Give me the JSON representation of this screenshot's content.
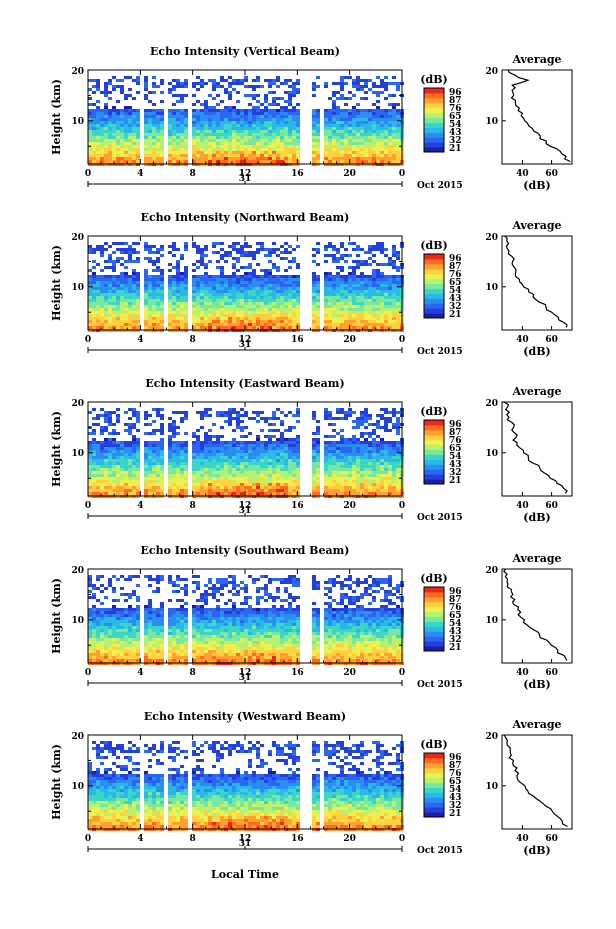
{
  "figure": {
    "xlabel": "Local Time",
    "date_label": "Oct 2015",
    "day_label": "31",
    "colorbar_unit": "(dB)",
    "colorbar_ticks": [
      "96",
      "87",
      "76",
      "65",
      "54",
      "43",
      "32",
      "21"
    ],
    "colors": [
      "#1b1ea8",
      "#2340dc",
      "#2a66f0",
      "#2a8ef0",
      "#2ab8e8",
      "#3cd6c8",
      "#78e8a0",
      "#b8f070",
      "#eef050",
      "#ffd040",
      "#ffa030",
      "#ff6a20",
      "#e8281a"
    ]
  },
  "chart_data": [
    {
      "type": "heatmap",
      "title": "Echo Intensity (Vertical Beam)",
      "xlabel": "",
      "ylabel": "Height (km)",
      "xlim": [
        0,
        24
      ],
      "ylim": [
        1.5,
        20
      ],
      "xticks": [
        "0",
        "4",
        "8",
        "12",
        "16",
        "20",
        "0"
      ],
      "yticks": [
        "10",
        "20"
      ],
      "gaps_hours": [
        [
          3.7,
          4.1
        ],
        [
          5.7,
          6.1
        ],
        [
          7.4,
          7.7
        ],
        [
          16.1,
          17.1
        ],
        [
          17.6,
          17.9
        ]
      ],
      "colorbar_range_db": [
        21,
        96
      ]
    },
    {
      "type": "line",
      "title": "Average",
      "xlabel": "(dB)",
      "ylabel": "",
      "ylim": [
        1.5,
        20
      ],
      "xticks": [
        "40",
        "60"
      ],
      "yticks": [
        "10",
        "20"
      ],
      "height_km": [
        2,
        3,
        4,
        5,
        6,
        7,
        8,
        9,
        10,
        11,
        12,
        13,
        14,
        15,
        16,
        17,
        18,
        19,
        20
      ],
      "db": [
        72,
        70,
        66,
        60,
        56,
        52,
        48,
        45,
        42,
        40,
        38,
        36,
        35,
        34,
        33,
        34,
        44,
        34,
        30
      ]
    },
    {
      "type": "heatmap",
      "title": "Echo Intensity (Northward Beam)",
      "xlabel": "",
      "ylabel": "Height (km)",
      "xlim": [
        0,
        24
      ],
      "ylim": [
        1.5,
        20
      ],
      "xticks": [
        "0",
        "4",
        "8",
        "12",
        "16",
        "20",
        "0"
      ],
      "yticks": [
        "10",
        "20"
      ],
      "gaps_hours": [
        [
          3.7,
          4.1
        ],
        [
          5.7,
          6.1
        ],
        [
          7.4,
          7.7
        ],
        [
          16.1,
          17.1
        ],
        [
          17.6,
          17.9
        ]
      ],
      "colorbar_range_db": [
        21,
        96
      ]
    },
    {
      "type": "line",
      "title": "Average",
      "xlabel": "(dB)",
      "ylabel": "",
      "ylim": [
        1.5,
        20
      ],
      "xticks": [
        "40",
        "60"
      ],
      "yticks": [
        "10",
        "20"
      ],
      "height_km": [
        2,
        3,
        4,
        5,
        6,
        7,
        8,
        9,
        10,
        11,
        12,
        13,
        14,
        15,
        16,
        17,
        18,
        19,
        20
      ],
      "db": [
        70,
        68,
        64,
        60,
        56,
        52,
        48,
        44,
        41,
        38,
        36,
        35,
        34,
        33,
        32,
        31,
        30,
        29,
        28
      ]
    },
    {
      "type": "heatmap",
      "title": "Echo Intensity (Eastward Beam)",
      "xlabel": "",
      "ylabel": "Height (km)",
      "xlim": [
        0,
        24
      ],
      "ylim": [
        1.5,
        20
      ],
      "xticks": [
        "0",
        "4",
        "8",
        "12",
        "16",
        "20",
        "0"
      ],
      "yticks": [
        "10",
        "20"
      ],
      "gaps_hours": [
        [
          3.7,
          4.1
        ],
        [
          5.7,
          6.1
        ],
        [
          7.4,
          7.7
        ],
        [
          16.1,
          17.1
        ],
        [
          17.6,
          17.9
        ]
      ],
      "colorbar_range_db": [
        21,
        96
      ]
    },
    {
      "type": "line",
      "title": "Average",
      "xlabel": "(dB)",
      "ylabel": "",
      "ylim": [
        1.5,
        20
      ],
      "xticks": [
        "40",
        "60"
      ],
      "yticks": [
        "10",
        "20"
      ],
      "height_km": [
        2,
        3,
        4,
        5,
        6,
        7,
        8,
        9,
        10,
        11,
        12,
        13,
        14,
        15,
        16,
        17,
        18,
        19,
        20
      ],
      "db": [
        70,
        68,
        64,
        60,
        56,
        52,
        48,
        44,
        41,
        38,
        36,
        35,
        34,
        33,
        32,
        31,
        30,
        29,
        28
      ]
    },
    {
      "type": "heatmap",
      "title": "Echo Intensity (Southward Beam)",
      "xlabel": "",
      "ylabel": "Height (km)",
      "xlim": [
        0,
        24
      ],
      "ylim": [
        1.5,
        20
      ],
      "xticks": [
        "0",
        "4",
        "8",
        "12",
        "16",
        "20",
        "0"
      ],
      "yticks": [
        "10",
        "20"
      ],
      "gaps_hours": [
        [
          3.7,
          4.1
        ],
        [
          5.7,
          6.1
        ],
        [
          7.4,
          7.7
        ],
        [
          16.1,
          17.1
        ],
        [
          17.6,
          17.9
        ]
      ],
      "colorbar_range_db": [
        21,
        96
      ]
    },
    {
      "type": "line",
      "title": "Average",
      "xlabel": "(dB)",
      "ylabel": "",
      "ylim": [
        1.5,
        20
      ],
      "xticks": [
        "40",
        "60"
      ],
      "yticks": [
        "10",
        "20"
      ],
      "height_km": [
        2,
        3,
        4,
        5,
        6,
        7,
        8,
        9,
        10,
        11,
        12,
        13,
        14,
        15,
        16,
        17,
        18,
        19,
        20
      ],
      "db": [
        70,
        68,
        64,
        60,
        56,
        52,
        48,
        44,
        41,
        38,
        36,
        35,
        34,
        33,
        32,
        31,
        30,
        29,
        28
      ]
    },
    {
      "type": "heatmap",
      "title": "Echo Intensity (Westward Beam)",
      "xlabel": "Local Time",
      "ylabel": "Height (km)",
      "xlim": [
        0,
        24
      ],
      "ylim": [
        1.5,
        20
      ],
      "xticks": [
        "0",
        "4",
        "8",
        "12",
        "16",
        "20",
        "0"
      ],
      "yticks": [
        "10",
        "20"
      ],
      "gaps_hours": [
        [
          3.7,
          4.1
        ],
        [
          5.7,
          6.1
        ],
        [
          7.4,
          7.7
        ],
        [
          16.1,
          17.1
        ],
        [
          17.6,
          17.9
        ]
      ],
      "colorbar_range_db": [
        21,
        96
      ]
    },
    {
      "type": "line",
      "title": "Average",
      "xlabel": "(dB)",
      "ylabel": "",
      "ylim": [
        1.5,
        20
      ],
      "xticks": [
        "40",
        "60"
      ],
      "yticks": [
        "10",
        "20"
      ],
      "height_km": [
        2,
        3,
        4,
        5,
        6,
        7,
        8,
        9,
        10,
        11,
        12,
        13,
        14,
        15,
        16,
        17,
        18,
        19,
        20
      ],
      "db": [
        70,
        68,
        64,
        60,
        56,
        52,
        48,
        44,
        41,
        38,
        36,
        35,
        34,
        33,
        32,
        31,
        30,
        29,
        28
      ]
    }
  ]
}
